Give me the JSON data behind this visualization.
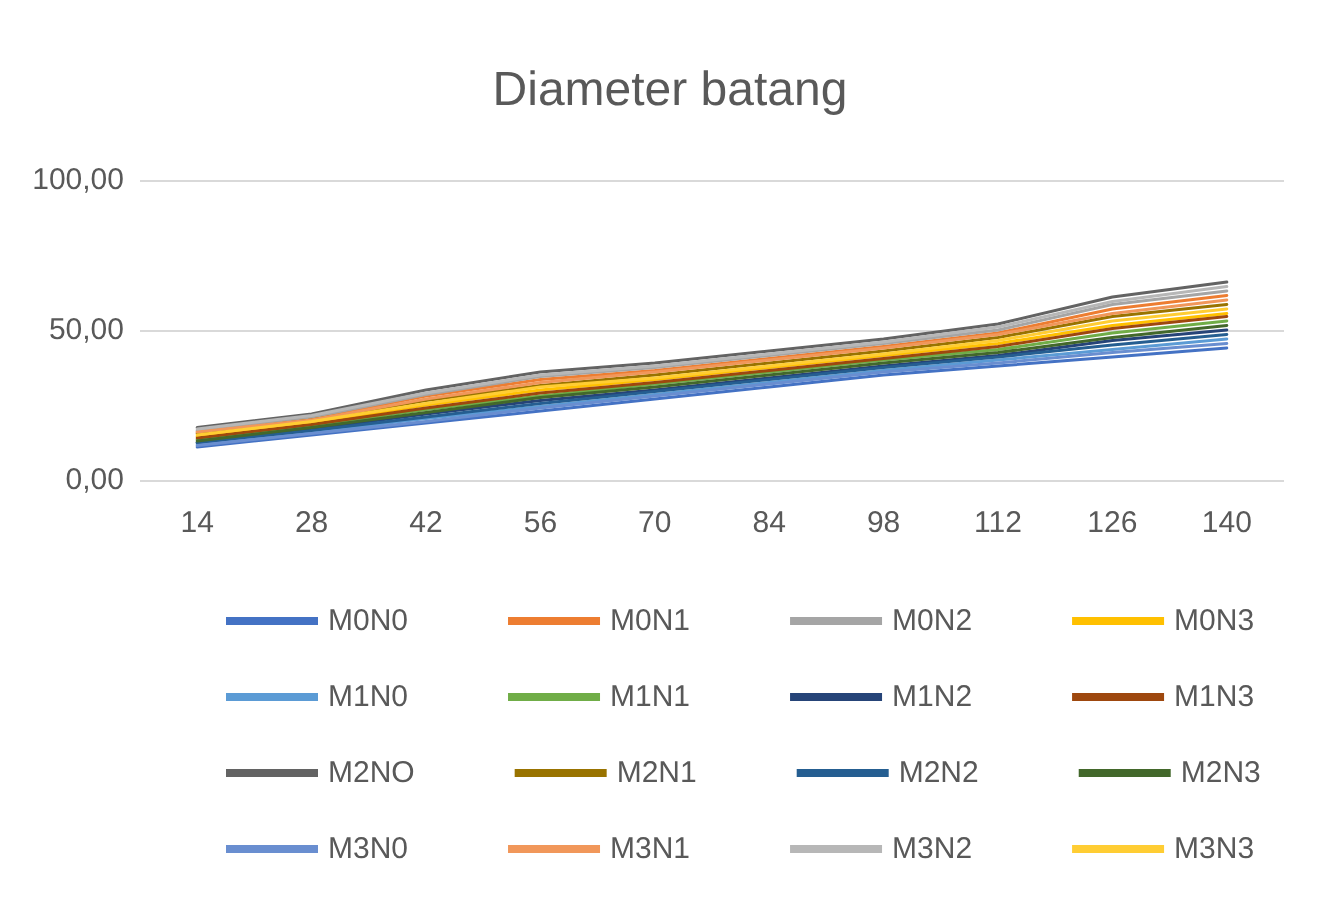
{
  "chart_data": {
    "type": "line",
    "title": "Diameter batang",
    "categories": [
      "14",
      "28",
      "42",
      "56",
      "70",
      "84",
      "98",
      "112",
      "126",
      "140"
    ],
    "ylim": [
      0,
      100
    ],
    "yticks": [
      {
        "value": 0,
        "label": "0,00"
      },
      {
        "value": 50,
        "label": "50,00"
      },
      {
        "value": 100,
        "label": "100,00"
      }
    ],
    "grid": "y",
    "legend": "bottom",
    "marker": "none",
    "line_style": "solid",
    "series": [
      {
        "name": "M0N0",
        "color": "#4472c4",
        "values": [
          11,
          15,
          19,
          23,
          27,
          31,
          35,
          38,
          41,
          44
        ]
      },
      {
        "name": "M0N1",
        "color": "#ed7d31",
        "values": [
          16,
          20.5,
          28,
          33.5,
          36.5,
          40.5,
          44.5,
          49,
          57,
          61.5
        ]
      },
      {
        "name": "M0N2",
        "color": "#a5a5a5",
        "values": [
          16.5,
          21,
          28.5,
          34.5,
          37.5,
          41.5,
          45.5,
          50,
          58.5,
          63
        ]
      },
      {
        "name": "M0N3",
        "color": "#ffc000",
        "values": [
          14.5,
          19,
          25,
          30,
          33.5,
          37.5,
          41.5,
          45.5,
          51.5,
          55.5
        ]
      },
      {
        "name": "M1N0",
        "color": "#5b9bd5",
        "values": [
          12,
          16,
          20.5,
          24.5,
          28.5,
          32.5,
          36.5,
          40,
          43.5,
          47
        ]
      },
      {
        "name": "M1N1",
        "color": "#70ad47",
        "values": [
          13.5,
          18,
          23.5,
          28,
          32,
          36,
          40,
          43.5,
          49,
          53
        ]
      },
      {
        "name": "M1N2",
        "color": "#264478",
        "values": [
          12.5,
          17,
          22,
          26.5,
          30,
          34,
          38,
          41.5,
          46.5,
          50
        ]
      },
      {
        "name": "M1N3",
        "color": "#9e480e",
        "values": [
          14,
          18.5,
          24,
          29,
          32.5,
          36.5,
          40.5,
          44.5,
          50.5,
          54.5
        ]
      },
      {
        "name": "M2NO",
        "color": "#636363",
        "values": [
          17.5,
          22,
          30,
          36,
          39,
          43,
          47,
          52,
          61,
          66
        ]
      },
      {
        "name": "M2N1",
        "color": "#997300",
        "values": [
          15.5,
          20,
          26.5,
          31.5,
          35,
          39,
          43,
          47.5,
          54.5,
          58.5
        ]
      },
      {
        "name": "M2N2",
        "color": "#255e91",
        "values": [
          12.5,
          16.5,
          21,
          25.5,
          29.5,
          33.5,
          37.5,
          41,
          45,
          48.5
        ]
      },
      {
        "name": "M2N3",
        "color": "#43682b",
        "values": [
          13,
          17.5,
          22.5,
          27.5,
          31,
          35,
          39,
          42.5,
          47.5,
          51.5
        ]
      },
      {
        "name": "M3N0",
        "color": "#698ed0",
        "values": [
          11.5,
          15.5,
          19.5,
          24,
          28,
          32,
          36,
          39,
          42.5,
          45.5
        ]
      },
      {
        "name": "M3N1",
        "color": "#f1975a",
        "values": [
          16,
          20,
          27,
          32.5,
          36,
          40,
          44,
          48.5,
          55.5,
          60
        ]
      },
      {
        "name": "M3N2",
        "color": "#b7b7b7",
        "values": [
          17,
          21.5,
          29,
          35,
          38,
          42,
          46,
          51,
          59.5,
          64.5
        ]
      },
      {
        "name": "M3N3",
        "color": "#ffcd33",
        "values": [
          15,
          19.5,
          25.5,
          31,
          34,
          38,
          42,
          46.5,
          53,
          57
        ]
      }
    ]
  }
}
